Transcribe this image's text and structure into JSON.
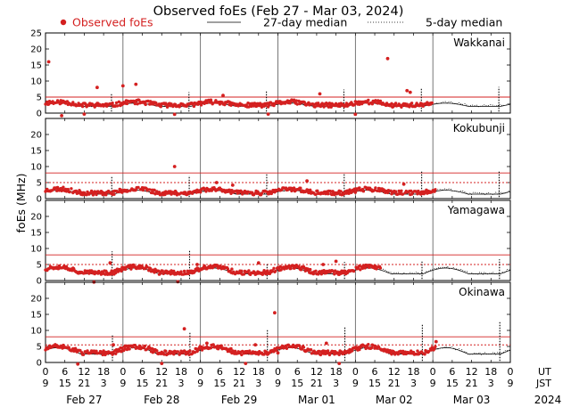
{
  "chart_data": {
    "type": "scatter",
    "title": "Observed foEs (Feb 27 - Mar 03, 2024)",
    "ylabel": "foEs (MHz)",
    "ylim": [
      0,
      25
    ],
    "y_ticks": [
      "0",
      "5",
      "10",
      "15",
      "20",
      "25"
    ],
    "xlim_hours": [
      0,
      144
    ],
    "legend": {
      "observed": "Observed foEs",
      "median27": "27-day median",
      "median5": "5-day median",
      "colors": {
        "observed": "#d42020",
        "median27": "#000000",
        "median5": "#000000"
      }
    },
    "hour_ticks": [
      "0",
      "6",
      "12",
      "18",
      "0",
      "6",
      "12",
      "18",
      "0",
      "6",
      "12",
      "18",
      "0",
      "6",
      "12",
      "18",
      "0",
      "6",
      "12",
      "18",
      "0",
      "6",
      "12",
      "18",
      "0"
    ],
    "jst_ticks": [
      "9",
      "15",
      "21",
      "3",
      "9",
      "15",
      "21",
      "3",
      "9",
      "15",
      "21",
      "3",
      "9",
      "15",
      "21",
      "3",
      "9",
      "15",
      "21",
      "3",
      "9",
      "15",
      "21",
      "3",
      "9"
    ],
    "ut_label": "UT",
    "jst_label": "JST",
    "dates": [
      "Feb 27",
      "Feb 28",
      "Feb 29",
      "Mar 01",
      "Mar 02",
      "Mar 03"
    ],
    "year": "2024",
    "red_line_color": "#d42020",
    "stations": [
      {
        "name": "Wakkanai",
        "base": 2.5,
        "amp": 1.0,
        "seed": 11,
        "obs_end": 120,
        "thr_solid": 5.0,
        "thr_dotted": 5.0,
        "spikes": [
          [
            1,
            16
          ],
          [
            16,
            8
          ],
          [
            24,
            8.5
          ],
          [
            28,
            9
          ],
          [
            55,
            5.5
          ],
          [
            85,
            6
          ],
          [
            106,
            17
          ],
          [
            112,
            7
          ],
          [
            113,
            6.5
          ]
        ],
        "dips": [
          [
            5,
            -1
          ],
          [
            12,
            -0.3
          ],
          [
            40,
            -0.4
          ],
          [
            69,
            -0.3
          ],
          [
            96,
            -0.4
          ]
        ]
      },
      {
        "name": "Kokubunji",
        "base": 1.8,
        "amp": 1.2,
        "seed": 23,
        "obs_end": 121,
        "thr_solid": 8.0,
        "thr_dotted": 5.0,
        "spikes": [
          [
            40,
            10
          ],
          [
            53,
            5
          ],
          [
            58,
            4.2
          ],
          [
            81,
            5.5
          ],
          [
            111,
            4.5
          ]
        ],
        "dips": []
      },
      {
        "name": "Yamagawa",
        "base": 2.5,
        "amp": 1.8,
        "seed": 37,
        "obs_end": 104,
        "thr_solid": 8.0,
        "thr_dotted": 5.0,
        "spikes": [
          [
            20,
            5.5
          ],
          [
            47,
            5
          ],
          [
            66,
            5.5
          ],
          [
            86,
            5
          ],
          [
            90,
            6
          ]
        ],
        "dips": [
          [
            15,
            -0.5
          ],
          [
            41,
            -0.4
          ]
        ]
      },
      {
        "name": "Okinawa",
        "base": 3.0,
        "amp": 2.0,
        "seed": 51,
        "obs_end": 121,
        "thr_solid": 8.0,
        "thr_dotted": 5.5,
        "spikes": [
          [
            21,
            5.5
          ],
          [
            43,
            10.5
          ],
          [
            50,
            6
          ],
          [
            65,
            5.5
          ],
          [
            71,
            15.5
          ],
          [
            87,
            6
          ],
          [
            121,
            6.5
          ],
          [
            72,
            3
          ]
        ],
        "dips": [
          [
            10,
            -0.5
          ],
          [
            36,
            -0.3
          ],
          [
            62,
            -0.3
          ],
          [
            91,
            -0.3
          ]
        ]
      }
    ]
  }
}
